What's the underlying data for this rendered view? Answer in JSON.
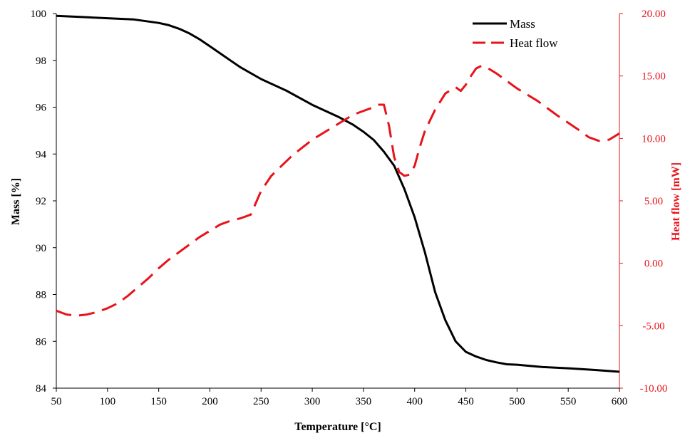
{
  "chart_data": {
    "type": "line",
    "xlabel": "Temperature [°C]",
    "ylabel_left": "Mass [%]",
    "ylabel_right": "Heat flow [mW]",
    "xlim": [
      50,
      600
    ],
    "ylim_left": [
      84,
      100
    ],
    "ylim_right": [
      -10,
      20
    ],
    "x_ticks": [
      "50",
      "100",
      "150",
      "200",
      "250",
      "300",
      "350",
      "400",
      "450",
      "500",
      "550",
      "600"
    ],
    "y_left_ticks": [
      "84",
      "86",
      "88",
      "90",
      "92",
      "94",
      "96",
      "98",
      "100"
    ],
    "y_right_ticks": [
      "-10.00",
      "-5.00",
      "0.00",
      "5.00",
      "10.00",
      "15.00",
      "20.00"
    ],
    "grid": false,
    "legend_position": "top-right",
    "series": [
      {
        "name": "Mass",
        "axis": "left",
        "color": "#000000",
        "dash": "solid",
        "x": [
          50,
          75,
          100,
          125,
          150,
          160,
          170,
          180,
          190,
          200,
          210,
          220,
          230,
          250,
          275,
          300,
          325,
          340,
          350,
          360,
          370,
          380,
          390,
          400,
          410,
          420,
          430,
          440,
          450,
          460,
          470,
          480,
          490,
          500,
          525,
          550,
          575,
          600
        ],
        "y": [
          99.9,
          99.85,
          99.8,
          99.75,
          99.6,
          99.5,
          99.35,
          99.15,
          98.9,
          98.6,
          98.3,
          98.0,
          97.7,
          97.2,
          96.7,
          96.1,
          95.6,
          95.25,
          94.95,
          94.6,
          94.1,
          93.5,
          92.5,
          91.3,
          89.8,
          88.1,
          86.9,
          86.0,
          85.55,
          85.35,
          85.2,
          85.1,
          85.02,
          85.0,
          84.9,
          84.85,
          84.78,
          84.7
        ]
      },
      {
        "name": "Heat flow",
        "axis": "right",
        "color": "#e8131b",
        "dash": "dashed",
        "x": [
          50,
          60,
          70,
          80,
          90,
          100,
          110,
          120,
          130,
          140,
          150,
          160,
          170,
          180,
          190,
          200,
          210,
          220,
          230,
          240,
          250,
          260,
          280,
          300,
          320,
          340,
          360,
          365,
          370,
          375,
          380,
          385,
          390,
          395,
          400,
          405,
          410,
          420,
          430,
          440,
          445,
          450,
          455,
          460,
          465,
          470,
          480,
          490,
          500,
          520,
          540,
          560,
          570,
          580,
          590,
          600
        ],
        "y": [
          -3.8,
          -4.1,
          -4.2,
          -4.1,
          -3.9,
          -3.6,
          -3.2,
          -2.6,
          -1.9,
          -1.2,
          -0.4,
          0.3,
          0.9,
          1.5,
          2.1,
          2.6,
          3.1,
          3.4,
          3.6,
          3.9,
          5.8,
          7.0,
          8.6,
          9.9,
          10.9,
          11.9,
          12.5,
          12.7,
          12.7,
          11.0,
          8.5,
          7.3,
          7.0,
          7.1,
          7.8,
          9.3,
          10.6,
          12.3,
          13.6,
          14.1,
          13.8,
          14.3,
          15.0,
          15.6,
          15.8,
          15.7,
          15.2,
          14.6,
          14.0,
          13.0,
          11.8,
          10.7,
          10.1,
          9.8,
          9.9,
          10.4
        ]
      }
    ]
  }
}
